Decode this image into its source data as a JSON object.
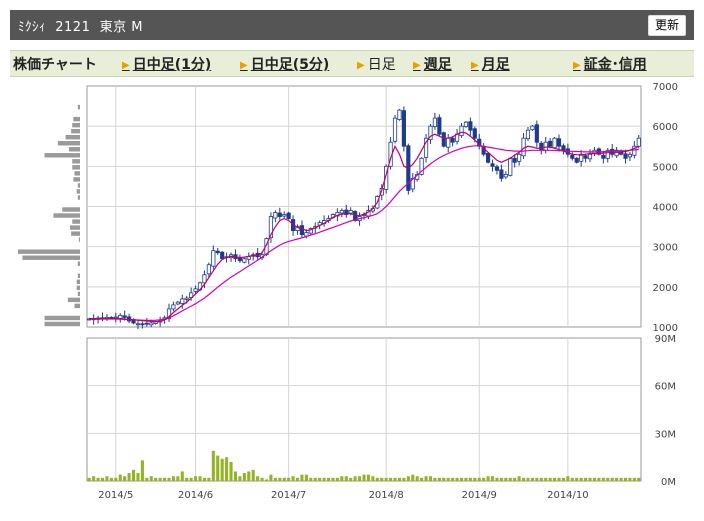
{
  "header": {
    "title": "ﾐｸｼｨ  2121  東京 M",
    "refresh_label": "更新"
  },
  "nav": {
    "chart_label": "株価チャート",
    "intraday_1": "日中足(1分)",
    "intraday_5": "日中足(5分)",
    "daily": "日足",
    "weekly": "週足",
    "monthly": "月足",
    "margin": "証金･信用"
  },
  "colors": {
    "up": "#ffffff",
    "down": "#1e3c8c",
    "ma_short": "#c0006c",
    "ma_long": "#d000c0",
    "volume": "#94b424",
    "profile": "#9a9a9a",
    "grid": "#d4d4d4"
  },
  "chart_data": [
    {
      "type": "candlestick",
      "y_ticks": [
        "1000",
        "2000",
        "3000",
        "4000",
        "5000",
        "6000",
        "7000"
      ],
      "ylim": [
        1000,
        7000
      ],
      "x_ticks": [
        "2014/5",
        "2014/6",
        "2014/7",
        "2014/8",
        "2014/9",
        "2014/10"
      ],
      "x_tick_index": [
        6,
        24,
        45,
        67,
        88,
        108
      ],
      "num_days": 125,
      "close": [
        1200,
        1210,
        1190,
        1230,
        1240,
        1220,
        1250,
        1290,
        1240,
        1150,
        1100,
        1080,
        1070,
        1090,
        1100,
        1130,
        1150,
        1230,
        1450,
        1550,
        1620,
        1700,
        1720,
        1850,
        1950,
        2100,
        2300,
        2550,
        2900,
        2850,
        2700,
        2750,
        2800,
        2700,
        2650,
        2700,
        2750,
        2800,
        2750,
        2800,
        3200,
        3750,
        3850,
        3750,
        3800,
        3700,
        3400,
        3500,
        3300,
        3350,
        3450,
        3500,
        3600,
        3650,
        3700,
        3800,
        3850,
        3900,
        3800,
        3900,
        3650,
        3750,
        3800,
        3900,
        3950,
        4250,
        4450,
        5000,
        5600,
        6200,
        6400,
        5500,
        4400,
        4700,
        4800,
        5200,
        5700,
        6000,
        6200,
        5800,
        5500,
        5700,
        5600,
        5800,
        6000,
        6100,
        5900,
        5700,
        5500,
        5300,
        5100,
        5000,
        4900,
        4700,
        4800,
        5200,
        5100,
        5300,
        5700,
        5900,
        6000,
        5600,
        5400,
        5600,
        5500,
        5700,
        5500,
        5400,
        5300,
        5200,
        5100,
        5300,
        5200,
        5300,
        5400,
        5300,
        5200,
        5400,
        5300,
        5400,
        5300,
        5200,
        5300,
        5500,
        5700
      ],
      "ma_short": [
        1210,
        1210,
        1210,
        1210,
        1210,
        1210,
        1210,
        1210,
        1200,
        1190,
        1180,
        1170,
        1160,
        1150,
        1140,
        1135,
        1140,
        1180,
        1260,
        1360,
        1450,
        1540,
        1620,
        1720,
        1820,
        1930,
        2060,
        2230,
        2400,
        2560,
        2680,
        2730,
        2760,
        2740,
        2730,
        2740,
        2760,
        2780,
        2780,
        2850,
        3050,
        3300,
        3500,
        3650,
        3700,
        3650,
        3550,
        3480,
        3450,
        3400,
        3420,
        3470,
        3530,
        3580,
        3650,
        3730,
        3780,
        3810,
        3820,
        3820,
        3780,
        3770,
        3810,
        3860,
        3950,
        4100,
        4400,
        4800,
        5200,
        5500,
        5300,
        5000,
        4950,
        5050,
        5200,
        5400,
        5600,
        5750,
        5800,
        5750,
        5700,
        5700,
        5730,
        5800,
        5850,
        5830,
        5750,
        5650,
        5550,
        5450,
        5350,
        5250,
        5150,
        5100,
        5150,
        5200,
        5280,
        5350,
        5450,
        5500,
        5480,
        5450,
        5450,
        5480,
        5480,
        5450,
        5420,
        5380,
        5340,
        5300,
        5290,
        5280,
        5300,
        5320,
        5320,
        5320,
        5330,
        5340,
        5350,
        5350,
        5350,
        5370,
        5400,
        5450,
        5500
      ],
      "ma_long": [
        1200,
        1200,
        1200,
        1200,
        1200,
        1200,
        1200,
        1195,
        1190,
        1185,
        1180,
        1175,
        1170,
        1165,
        1165,
        1170,
        1180,
        1200,
        1230,
        1280,
        1340,
        1400,
        1460,
        1520,
        1580,
        1650,
        1720,
        1810,
        1900,
        1990,
        2080,
        2160,
        2240,
        2310,
        2380,
        2450,
        2520,
        2590,
        2660,
        2740,
        2820,
        2900,
        2970,
        3040,
        3090,
        3130,
        3160,
        3190,
        3220,
        3250,
        3290,
        3320,
        3360,
        3400,
        3440,
        3480,
        3520,
        3560,
        3600,
        3640,
        3670,
        3700,
        3720,
        3750,
        3780,
        3820,
        3900,
        4000,
        4120,
        4250,
        4380,
        4480,
        4580,
        4680,
        4780,
        4880,
        4970,
        5060,
        5140,
        5210,
        5270,
        5320,
        5370,
        5410,
        5450,
        5480,
        5500,
        5510,
        5510,
        5500,
        5480,
        5460,
        5440,
        5420,
        5400,
        5390,
        5380,
        5380,
        5380,
        5390,
        5400,
        5400,
        5400,
        5400,
        5400,
        5395,
        5390,
        5385,
        5380,
        5375,
        5370,
        5365,
        5360,
        5360,
        5360,
        5360,
        5365,
        5370,
        5375,
        5380,
        5385,
        5390,
        5400,
        5410,
        5420
      ]
    },
    {
      "type": "bar",
      "y_ticks": [
        "0M",
        "30M",
        "60M",
        "90M"
      ],
      "ylim": [
        0,
        90
      ],
      "values": [
        2,
        3,
        2,
        2,
        3,
        2,
        2,
        4,
        3,
        5,
        7,
        5,
        13,
        2,
        3,
        2,
        2,
        2,
        2,
        3,
        3,
        6,
        2,
        2,
        3,
        3,
        2,
        2,
        19,
        16,
        14,
        15,
        12,
        6,
        3,
        5,
        6,
        7,
        3,
        2,
        1,
        4,
        2,
        2,
        2,
        2,
        3,
        2,
        4,
        4,
        2,
        2,
        2,
        2,
        2,
        2,
        2,
        3,
        3,
        2,
        3,
        3,
        4,
        4,
        3,
        2,
        2,
        2,
        2,
        2,
        2,
        2,
        3,
        4,
        3,
        2,
        3,
        3,
        2,
        2,
        2,
        2,
        2,
        2,
        2,
        2,
        2,
        2,
        2,
        2,
        3,
        3,
        2,
        2,
        2,
        2,
        2,
        3,
        2,
        2,
        2,
        2,
        2,
        2,
        2,
        2,
        2,
        2,
        3,
        2,
        2,
        2,
        2,
        2,
        2,
        2,
        2,
        2,
        2,
        2,
        2,
        2,
        2,
        2,
        2
      ]
    }
  ]
}
